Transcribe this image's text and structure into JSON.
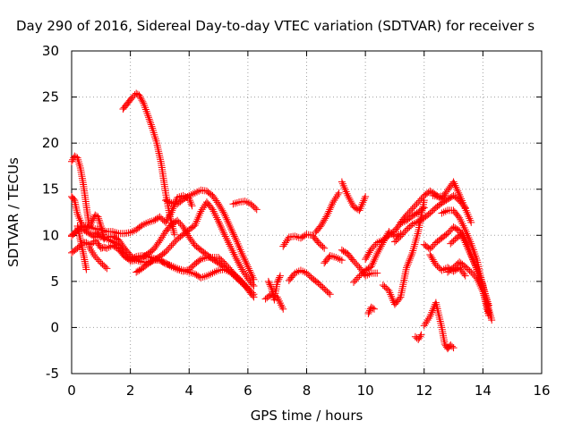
{
  "chart_data": {
    "type": "scatter",
    "title": "Day 290 of 2016, Sidereal Day-to-day VTEC variation (SDTVAR) for receiver s",
    "xlabel": "GPS time / hours",
    "ylabel": "SDTVAR / TECUs",
    "xlim": [
      0,
      16
    ],
    "ylim": [
      -5,
      30
    ],
    "xticks": [
      "0",
      "2",
      "4",
      "6",
      "8",
      "10",
      "12",
      "14",
      "16"
    ],
    "yticks": [
      "-5",
      "0",
      "5",
      "10",
      "15",
      "20",
      "25",
      "30"
    ],
    "grid": true,
    "marker": "+",
    "color": "#ff0000",
    "series": [
      {
        "x": [
          1.75,
          1.9,
          2.05,
          2.2,
          2.3,
          2.45,
          2.6,
          2.75,
          2.9,
          3.05,
          3.2,
          3.35,
          3.5
        ],
        "y": [
          23.7,
          24.3,
          24.9,
          25.4,
          25.2,
          24.3,
          23.0,
          21.6,
          20.0,
          17.8,
          14.6,
          12.0,
          10.1
        ]
      },
      {
        "x": [
          0.0,
          0.1,
          0.2,
          0.3,
          0.4,
          0.5,
          0.6
        ],
        "y": [
          18.0,
          18.6,
          18.4,
          17.3,
          15.5,
          13.2,
          11.0
        ]
      },
      {
        "x": [
          0.2,
          0.3,
          0.4,
          0.5
        ],
        "y": [
          11.0,
          9.5,
          8.0,
          6.3
        ]
      },
      {
        "x": [
          0.0,
          0.1,
          0.2,
          0.35,
          0.5,
          0.65,
          0.8,
          0.9,
          1.0,
          1.1
        ],
        "y": [
          14.2,
          13.8,
          12.3,
          11.2,
          10.7,
          11.2,
          12.2,
          12.0,
          11.0,
          9.6
        ]
      },
      {
        "x": [
          0.0,
          0.2,
          0.4,
          0.6,
          0.8,
          1.0,
          1.2,
          1.4,
          1.6,
          1.8,
          2.0,
          2.2,
          2.4,
          2.6,
          2.8,
          3.0,
          3.2,
          3.4,
          3.6,
          3.8,
          4.0,
          4.1
        ],
        "y": [
          9.9,
          10.6,
          11.0,
          10.9,
          10.7,
          10.6,
          10.4,
          10.4,
          10.2,
          10.2,
          10.3,
          10.6,
          11.1,
          11.4,
          11.6,
          12.0,
          11.4,
          12.5,
          14.1,
          14.3,
          14.0,
          13.2
        ]
      },
      {
        "x": [
          0.0,
          0.2,
          0.4,
          0.5,
          0.6,
          0.7,
          0.8,
          0.9,
          1.0,
          1.1,
          1.2,
          1.4,
          1.6,
          1.8,
          2.0,
          2.2,
          2.4,
          2.6,
          2.8,
          3.0,
          3.2,
          3.4,
          3.6,
          3.8,
          4.0,
          4.2,
          4.4,
          4.6,
          4.8,
          5.0,
          5.2,
          5.4,
          5.6,
          5.8,
          6.0,
          6.2
        ],
        "y": [
          8.1,
          8.6,
          9.2,
          9.2,
          9.0,
          9.1,
          9.4,
          9.1,
          8.6,
          8.7,
          8.6,
          8.9,
          8.5,
          7.7,
          7.3,
          7.7,
          7.8,
          7.7,
          7.5,
          7.3,
          6.9,
          6.7,
          6.4,
          6.2,
          6.0,
          5.8,
          5.4,
          5.6,
          5.9,
          6.2,
          6.3,
          6.0,
          5.6,
          5.0,
          4.1,
          3.3
        ]
      },
      {
        "x": [
          0.0,
          0.2,
          0.4,
          0.6,
          0.8,
          1.0,
          1.2,
          1.4,
          1.6,
          1.8,
          2.0,
          2.2,
          2.4,
          2.6,
          2.8,
          3.0,
          3.2,
          3.4,
          3.6,
          3.8,
          4.0,
          4.2,
          4.4,
          4.6,
          4.8,
          5.0,
          5.2,
          5.4,
          5.6,
          5.8,
          6.0,
          6.2
        ],
        "y": [
          10.0,
          10.6,
          10.6,
          10.2,
          9.8,
          9.8,
          9.8,
          9.9,
          9.5,
          8.6,
          7.8,
          7.3,
          7.1,
          7.1,
          7.3,
          7.3,
          7.0,
          6.6,
          6.3,
          6.1,
          6.3,
          6.9,
          7.4,
          7.6,
          7.6,
          7.6,
          7.0,
          6.3,
          5.5,
          4.9,
          4.3,
          3.6
        ]
      },
      {
        "x": [
          0.8,
          1.0,
          1.2,
          1.4,
          1.6,
          1.8,
          2.0,
          2.2,
          2.4,
          2.6,
          2.8,
          3.0,
          3.2,
          3.4,
          3.6,
          3.8,
          4.0,
          4.2,
          4.4,
          4.6,
          4.8,
          5.0,
          5.2,
          5.4,
          5.6,
          5.8,
          6.0
        ],
        "y": [
          10.3,
          9.9,
          9.6,
          9.3,
          8.9,
          7.9,
          7.2,
          7.3,
          7.6,
          8.0,
          8.5,
          9.4,
          10.4,
          11.2,
          11.6,
          10.9,
          9.8,
          8.9,
          8.4,
          7.9,
          7.4,
          7.0,
          6.6,
          6.0,
          5.4,
          4.8,
          4.2
        ]
      },
      {
        "x": [
          0.6,
          0.8,
          1.0,
          1.2
        ],
        "y": [
          8.7,
          7.7,
          7.0,
          6.4
        ]
      },
      {
        "x": [
          2.2,
          2.4,
          2.6,
          2.8,
          3.0,
          3.2,
          3.4,
          3.6,
          3.8,
          4.0,
          4.2,
          4.4,
          4.6,
          4.8,
          5.0,
          5.2,
          5.4,
          5.6,
          5.8,
          6.0,
          6.2
        ],
        "y": [
          6.0,
          6.4,
          6.9,
          7.3,
          7.7,
          8.2,
          8.9,
          9.6,
          10.1,
          10.6,
          11.1,
          12.6,
          13.6,
          12.8,
          11.5,
          10.1,
          8.8,
          7.5,
          6.3,
          5.3,
          4.5
        ]
      },
      {
        "x": [
          3.2,
          3.4,
          3.6,
          3.8,
          4.0,
          4.2,
          4.4,
          4.6,
          4.8,
          5.0,
          5.2,
          5.4,
          5.6,
          5.8,
          6.0,
          6.2
        ],
        "y": [
          13.8,
          13.5,
          13.4,
          13.9,
          14.3,
          14.6,
          14.9,
          14.8,
          14.3,
          13.4,
          12.3,
          10.9,
          9.5,
          8.0,
          6.6,
          5.2
        ]
      },
      {
        "x": [
          5.5,
          5.7,
          5.9,
          6.1,
          6.3
        ],
        "y": [
          13.4,
          13.6,
          13.7,
          13.4,
          12.8
        ]
      },
      {
        "x": [
          6.7,
          6.8,
          6.9,
          7.0,
          7.1
        ],
        "y": [
          5.0,
          4.3,
          3.0,
          4.9,
          5.6
        ]
      },
      {
        "x": [
          6.6,
          6.8,
          7.0,
          7.2
        ],
        "y": [
          3.1,
          3.6,
          3.3,
          2.0
        ]
      },
      {
        "x": [
          7.2,
          7.4,
          7.6,
          7.8,
          8.0,
          8.2,
          8.4,
          8.6
        ],
        "y": [
          8.8,
          9.8,
          9.9,
          9.7,
          10.1,
          10.0,
          9.2,
          8.6
        ]
      },
      {
        "x": [
          7.4,
          7.6,
          7.8,
          8.0,
          8.2,
          8.4,
          8.6,
          8.8
        ],
        "y": [
          5.1,
          5.9,
          6.2,
          5.9,
          5.3,
          4.8,
          4.2,
          3.6
        ]
      },
      {
        "x": [
          8.3,
          8.5,
          8.7,
          8.9,
          9.1
        ],
        "y": [
          10.3,
          11.1,
          12.2,
          13.6,
          14.6
        ]
      },
      {
        "x": [
          9.2,
          9.4,
          9.6,
          9.8,
          10.0
        ],
        "y": [
          15.8,
          14.3,
          13.1,
          12.7,
          14.2
        ]
      },
      {
        "x": [
          8.6,
          8.8,
          9.0,
          9.2
        ],
        "y": [
          7.0,
          7.8,
          7.6,
          7.3
        ]
      },
      {
        "x": [
          9.2,
          9.4,
          9.6,
          9.8,
          10.0,
          10.2,
          10.4
        ],
        "y": [
          8.4,
          8.0,
          7.2,
          6.5,
          5.6,
          5.9,
          5.9
        ]
      },
      {
        "x": [
          9.6,
          9.8,
          10.0,
          10.2,
          10.4,
          10.6,
          10.8,
          11.0,
          11.2
        ],
        "y": [
          4.9,
          5.6,
          6.2,
          6.6,
          8.0,
          9.2,
          10.4,
          9.9,
          10.2
        ]
      },
      {
        "x": [
          10.0,
          10.2,
          10.4,
          10.6,
          10.8,
          11.0,
          11.2,
          11.4,
          11.6,
          11.8,
          12.0
        ],
        "y": [
          7.4,
          8.5,
          9.2,
          9.5,
          10.0,
          10.5,
          11.3,
          11.6,
          12.1,
          12.5,
          13.0
        ]
      },
      {
        "x": [
          10.1,
          10.2,
          10.3
        ],
        "y": [
          1.5,
          2.2,
          2.0
        ]
      },
      {
        "x": [
          10.6,
          10.8,
          11.0,
          11.2,
          11.4,
          11.6,
          11.8,
          12.0
        ],
        "y": [
          4.6,
          4.0,
          2.5,
          3.3,
          6.5,
          8.1,
          10.4,
          13.8
        ]
      },
      {
        "x": [
          11.0,
          11.2,
          11.4,
          11.6,
          11.8,
          12.0,
          12.2,
          12.4,
          12.6,
          12.8,
          13.0,
          13.2,
          13.4
        ],
        "y": [
          9.3,
          9.9,
          10.6,
          11.2,
          11.5,
          11.9,
          12.4,
          13.0,
          13.5,
          13.9,
          14.3,
          13.8,
          13.0
        ]
      },
      {
        "x": [
          11.2,
          11.4,
          11.6,
          11.8,
          12.0,
          12.2,
          12.4,
          12.6,
          12.8,
          13.0,
          13.2,
          13.4,
          13.6
        ],
        "y": [
          11.4,
          12.2,
          12.9,
          13.6,
          14.3,
          14.8,
          14.4,
          13.9,
          14.9,
          15.8,
          14.4,
          12.9,
          11.4
        ]
      },
      {
        "x": [
          11.7,
          11.8,
          11.9
        ],
        "y": [
          -1.0,
          -1.3,
          -0.8
        ]
      },
      {
        "x": [
          12.0,
          12.2,
          12.4,
          12.6,
          12.7,
          12.8,
          12.9,
          13.0
        ],
        "y": [
          0.2,
          1.2,
          2.7,
          0.0,
          -1.8,
          -2.3,
          -1.9,
          -2.2
        ]
      },
      {
        "x": [
          12.2,
          12.4,
          12.6,
          12.8,
          13.0,
          13.2,
          13.4
        ],
        "y": [
          7.9,
          6.8,
          6.2,
          6.5,
          6.1,
          6.5,
          5.6
        ]
      },
      {
        "x": [
          12.0,
          12.2,
          12.4,
          12.6,
          12.8,
          13.0,
          13.2,
          13.4,
          13.6,
          13.8,
          14.0,
          14.2
        ],
        "y": [
          9.0,
          8.5,
          9.2,
          9.7,
          10.2,
          10.9,
          10.5,
          9.2,
          7.8,
          6.3,
          4.6,
          1.6
        ]
      },
      {
        "x": [
          12.6,
          12.8,
          13.0,
          13.2,
          13.4,
          13.6,
          13.8,
          14.0,
          14.2
        ],
        "y": [
          12.4,
          12.7,
          12.7,
          11.9,
          10.6,
          9.1,
          7.3,
          4.5,
          2.4
        ]
      },
      {
        "x": [
          12.8,
          13.0,
          13.2,
          13.4,
          13.6,
          13.8,
          14.0,
          14.2
        ],
        "y": [
          6.0,
          6.5,
          7.1,
          6.6,
          6.0,
          5.3,
          3.9,
          1.3
        ]
      },
      {
        "x": [
          12.9,
          13.1,
          13.3,
          13.5,
          13.7,
          13.9,
          14.1,
          14.3
        ],
        "y": [
          9.1,
          9.7,
          10.2,
          8.6,
          7.1,
          5.2,
          3.2,
          0.8
        ]
      },
      {
        "x": [
          12.3,
          12.5,
          12.7
        ],
        "y": [
          14.3,
          14.2,
          14.3
        ]
      }
    ]
  }
}
